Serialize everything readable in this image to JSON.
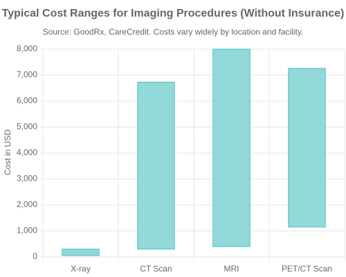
{
  "chart_data": {
    "type": "floating-bar",
    "title": "Typical Cost Ranges for Imaging Procedures (Without Insurance)",
    "subtitle": "Source: GoodRx, CareCredit. Costs vary widely by location and facility.",
    "y_label": "Cost in USD",
    "categories": [
      "X-ray",
      "CT Scan",
      "MRI",
      "PET/CT Scan"
    ],
    "values": [
      [
        50,
        300
      ],
      [
        300,
        6730
      ],
      [
        400,
        8000
      ],
      [
        1150,
        7260
      ]
    ],
    "color": "#93d9d9",
    "border_color": "#4bc0c0",
    "ylim": [
      0,
      8000
    ],
    "yticks": [
      0,
      {
        "value": 1000,
        "label": "1,000"
      },
      {
        "value": 2000,
        "label": "2,000"
      },
      {
        "value": 3000,
        "label": "3,000"
      },
      {
        "value": 4000,
        "label": "4,000"
      },
      {
        "value": 5000,
        "label": "5,000"
      },
      {
        "value": 6000,
        "label": "6,000"
      },
      {
        "value": 7000,
        "label": "7,000"
      },
      {
        "value": 8000,
        "label": "8,000"
      }
    ],
    "grid": true
  }
}
